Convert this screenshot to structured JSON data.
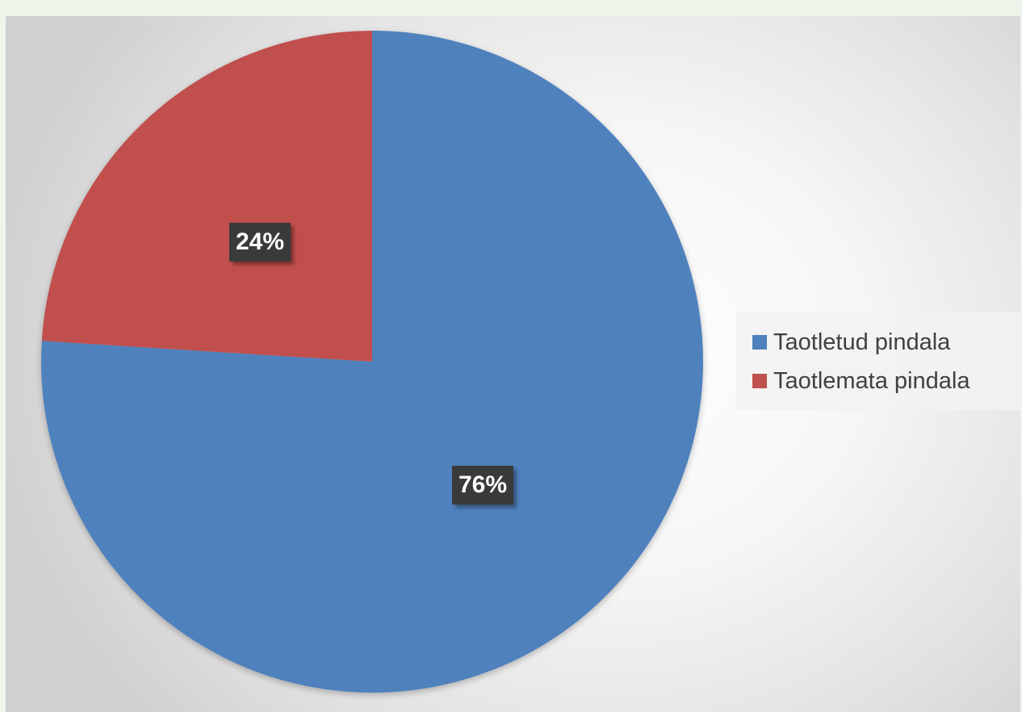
{
  "chart_data": {
    "type": "pie",
    "categories": [
      "Taotletud pindala",
      "Taotlemata pindala"
    ],
    "values": [
      76,
      24
    ],
    "data_labels": [
      "76%",
      "24%"
    ],
    "colors": [
      "#4f81bd",
      "#c0504d"
    ],
    "start_angle": "12 o'clock",
    "direction": "clockwise",
    "legend": "right",
    "title": "",
    "grid": false
  }
}
